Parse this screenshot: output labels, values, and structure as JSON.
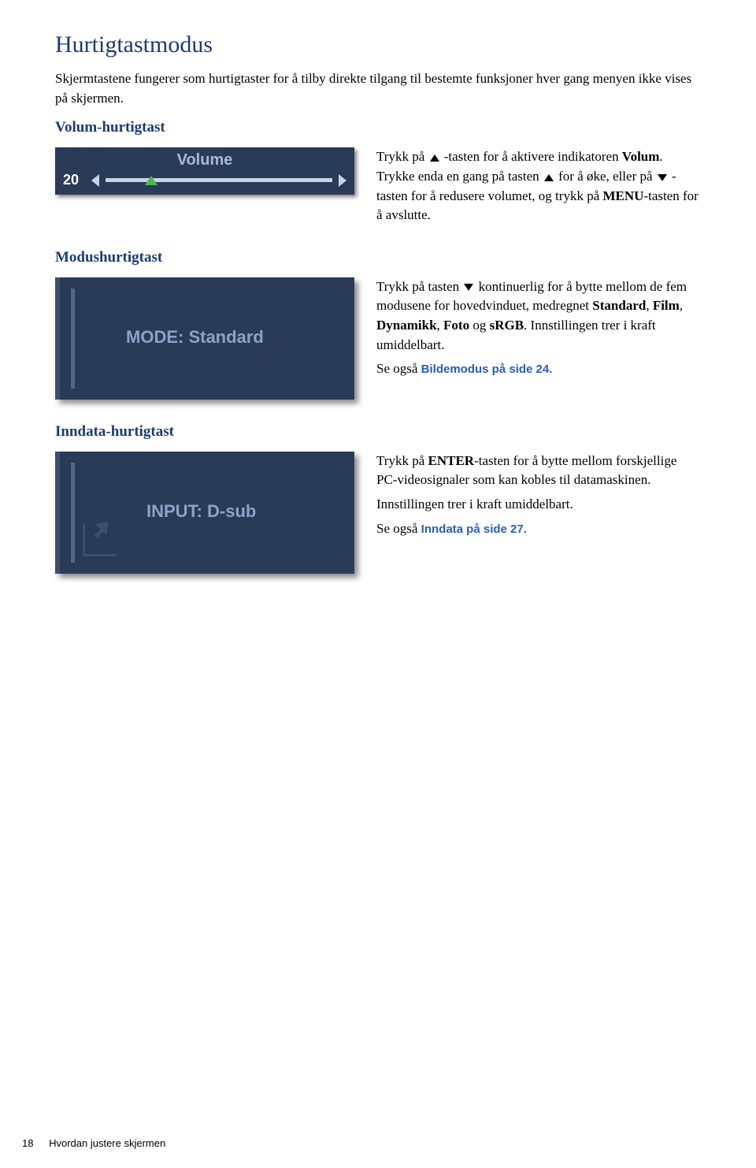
{
  "title": "Hurtigtastmodus",
  "intro": "Skjermtastene fungerer som hurtigtaster for å tilby direkte tilgang til bestemte funksjoner hver gang menyen ikke vises på skjermen.",
  "section_volume": {
    "heading": "Volum-hurtigtast",
    "osd": {
      "title": "Volume",
      "value": "20",
      "percent": 20
    },
    "text1a": "Trykk på ",
    "text1b": "-tasten for å aktivere indikatoren ",
    "bold1": "Volum",
    "text1c": ". Trykke enda en gang på tasten ",
    "text1d": " for å øke, eller på ",
    "text1e": " -tasten for å redusere volumet, og trykk på ",
    "bold2": "MENU",
    "text1f": "-tasten for å avslutte."
  },
  "section_mode": {
    "heading": "Modushurtigtast",
    "osd_label": "MODE: Standard",
    "text1a": "Trykk på tasten ",
    "text1b": " kontinuerlig for å bytte mellom de fem modusene for hovedvinduet, medregnet ",
    "b1": "Standard",
    "c1": ", ",
    "b2": "Film",
    "c2": ", ",
    "b3": "Dynamikk",
    "c3": ", ",
    "b4": "Foto",
    "c4": " og ",
    "b5": "sRGB",
    "text1c": ". Innstillingen trer i kraft umiddelbart.",
    "see_also_pre": "Se også ",
    "see_also_link": "Bildemodus på side 24",
    "dot": "."
  },
  "section_input": {
    "heading": "Inndata-hurtigtast",
    "osd_label": "INPUT: D-sub",
    "text1a": "Trykk på ",
    "b1": "ENTER",
    "text1b": "-tasten for å bytte mellom forskjellige PC-videosignaler som kan kobles til datamaskinen.",
    "text2": "Innstillingen trer i kraft umiddelbart.",
    "see_also_pre": "Se også ",
    "see_also_link": "Inndata på side 27",
    "dot": "."
  },
  "footer": {
    "page": "18",
    "section": "Hvordan justere skjermen"
  },
  "colors": {
    "heading": "#1c3b6e",
    "osd_bg": "#2a3b57",
    "osd_text": "#8ba3c7",
    "osd_accent": "#4fb34f",
    "link": "#2a5db0"
  }
}
